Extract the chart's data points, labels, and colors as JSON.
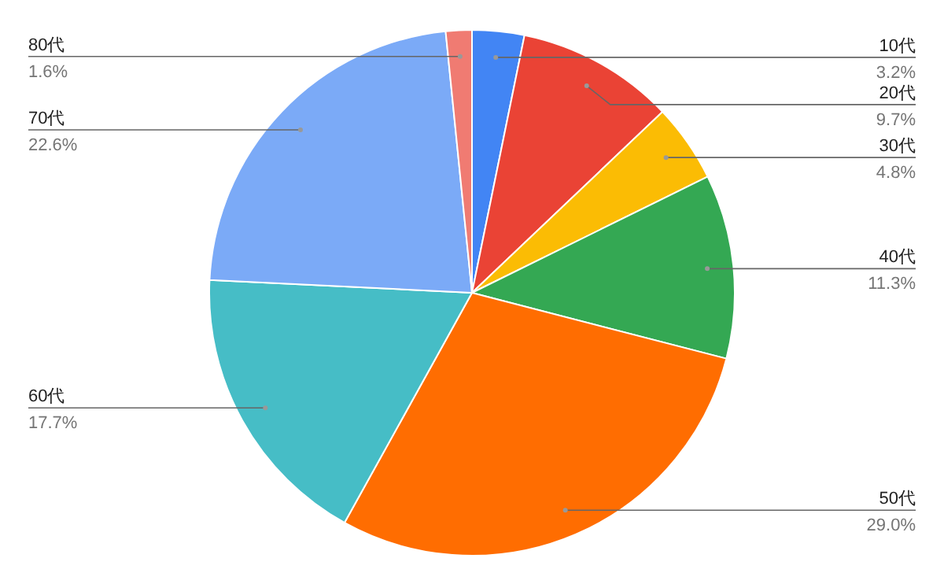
{
  "chart_data": {
    "type": "pie",
    "categories": [
      "10代",
      "20代",
      "30代",
      "40代",
      "50代",
      "60代",
      "70代",
      "80代"
    ],
    "values": [
      3.2,
      9.7,
      4.8,
      11.3,
      29.0,
      17.7,
      22.6,
      1.6
    ],
    "value_labels": [
      "3.2%",
      "9.7%",
      "4.8%",
      "11.3%",
      "29.0%",
      "17.7%",
      "22.6%",
      "1.6%"
    ],
    "colors": [
      "#4285f4",
      "#ea4335",
      "#fbbc04",
      "#34a853",
      "#ff6d01",
      "#46bdc6",
      "#7baaf7",
      "#f07b72"
    ]
  }
}
